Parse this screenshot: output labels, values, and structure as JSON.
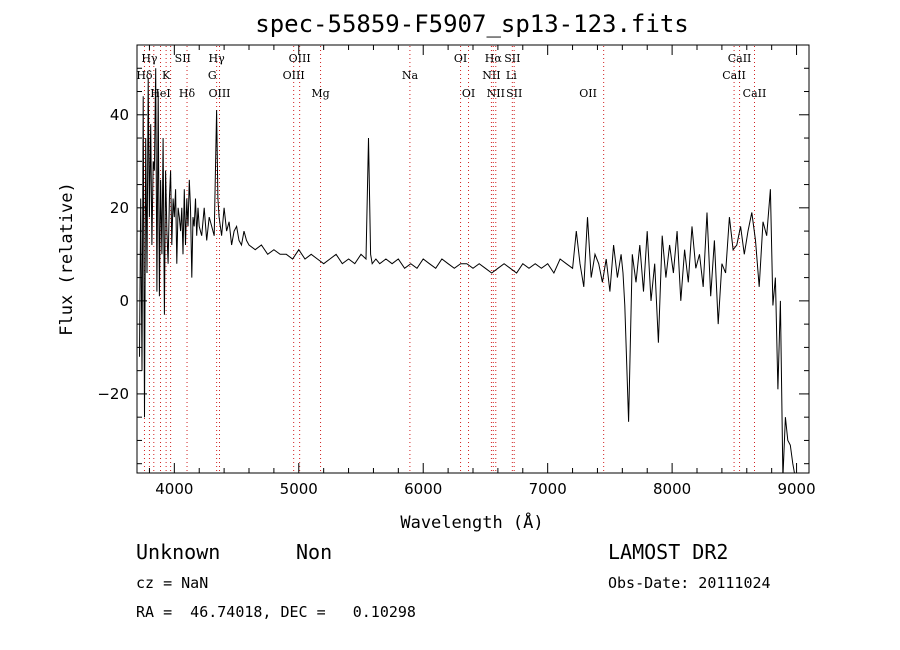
{
  "chart_data": {
    "type": "line",
    "title": "spec-55859-F5907_sp13-123.fits",
    "xlabel": "Wavelength (Å)",
    "ylabel": "Flux (relative)",
    "xlim": [
      3700,
      9100
    ],
    "ylim": [
      -37,
      55
    ],
    "x_ticks": [
      4000,
      5000,
      6000,
      7000,
      8000,
      9000
    ],
    "y_ticks": [
      -20,
      0,
      20,
      40
    ],
    "grid": false,
    "line_color": "#000000",
    "marker_color": "#d02020",
    "series": [
      {
        "x": [
          3720,
          3730,
          3740,
          3750,
          3760,
          3770,
          3780,
          3790,
          3800,
          3810,
          3820,
          3830,
          3840,
          3850,
          3860,
          3870,
          3880,
          3890,
          3900,
          3910,
          3920,
          3930,
          3940,
          3950,
          3960,
          3970,
          3980,
          3990,
          4000,
          4010,
          4020,
          4030,
          4040,
          4050,
          4060,
          4070,
          4080,
          4090,
          4100,
          4110,
          4120,
          4130,
          4140,
          4150,
          4160,
          4170,
          4180,
          4190,
          4200,
          4220,
          4240,
          4260,
          4280,
          4300,
          4320,
          4340,
          4350,
          4360,
          4380,
          4400,
          4420,
          4440,
          4460,
          4480,
          4500,
          4520,
          4540,
          4560,
          4580,
          4600,
          4650,
          4700,
          4750,
          4800,
          4850,
          4900,
          4950,
          5000,
          5050,
          5100,
          5150,
          5200,
          5250,
          5300,
          5350,
          5400,
          5450,
          5500,
          5540,
          5560,
          5577,
          5590,
          5620,
          5650,
          5700,
          5750,
          5800,
          5850,
          5900,
          5950,
          6000,
          6050,
          6100,
          6150,
          6200,
          6250,
          6300,
          6350,
          6400,
          6450,
          6500,
          6550,
          6600,
          6650,
          6700,
          6750,
          6800,
          6850,
          6900,
          6950,
          7000,
          7050,
          7100,
          7150,
          7200,
          7230,
          7260,
          7290,
          7320,
          7350,
          7380,
          7410,
          7440,
          7470,
          7500,
          7530,
          7560,
          7590,
          7605,
          7620,
          7650,
          7680,
          7710,
          7740,
          7770,
          7800,
          7830,
          7860,
          7890,
          7920,
          7950,
          7980,
          8010,
          8040,
          8070,
          8100,
          8130,
          8160,
          8190,
          8220,
          8250,
          8280,
          8310,
          8340,
          8370,
          8400,
          8430,
          8460,
          8490,
          8520,
          8550,
          8580,
          8610,
          8640,
          8670,
          8700,
          8730,
          8760,
          8790,
          8810,
          8830,
          8850,
          8870,
          8890,
          8910,
          8930,
          8950,
          8970,
          8990,
          9000
        ],
        "y": [
          -12,
          22,
          -15,
          44,
          -25,
          35,
          6,
          48,
          18,
          38,
          12,
          30,
          28,
          50,
          2,
          45,
          1,
          26,
          10,
          35,
          -3,
          28,
          15,
          8,
          22,
          28,
          12,
          22,
          18,
          24,
          8,
          20,
          18,
          15,
          20,
          10,
          24,
          12,
          22,
          16,
          26,
          20,
          5,
          18,
          16,
          22,
          14,
          20,
          16,
          14,
          20,
          13,
          18,
          16,
          14,
          41,
          22,
          18,
          14,
          20,
          15,
          17,
          12,
          15,
          16,
          13,
          12,
          15,
          13,
          12,
          11,
          12,
          10,
          11,
          10,
          10,
          9,
          11,
          9,
          10,
          9,
          8,
          9,
          10,
          8,
          9,
          8,
          10,
          9,
          35,
          10,
          8,
          9,
          8,
          9,
          8,
          9,
          7,
          8,
          7,
          9,
          8,
          7,
          9,
          8,
          7,
          8,
          8,
          7,
          8,
          7,
          6,
          7,
          8,
          7,
          6,
          8,
          7,
          8,
          7,
          8,
          6,
          9,
          8,
          7,
          15,
          8,
          3,
          18,
          5,
          10,
          8,
          4,
          9,
          2,
          12,
          5,
          10,
          6,
          -1,
          -26,
          10,
          4,
          12,
          2,
          15,
          0,
          8,
          -9,
          14,
          5,
          12,
          6,
          15,
          0,
          11,
          4,
          16,
          7,
          10,
          3,
          19,
          1,
          13,
          -5,
          8,
          6,
          18,
          11,
          12,
          16,
          10,
          15,
          19,
          13,
          3,
          17,
          14,
          24,
          -1,
          5,
          -19,
          0,
          -38,
          -25,
          -30,
          -31,
          -35,
          -38,
          -40
        ]
      }
    ],
    "line_markers": [
      {
        "label": "Hγ",
        "x": 3800,
        "row": 1
      },
      {
        "label": "Hδ",
        "x": 3760,
        "row": 2
      },
      {
        "label": "K",
        "x": 3934,
        "row": 2
      },
      {
        "label": "HeI",
        "x": 3889,
        "row": 3
      },
      {
        "label": "SII",
        "x": 4068,
        "row": 1
      },
      {
        "label": "Hδ",
        "x": 4102,
        "row": 3
      },
      {
        "label": "Hγ",
        "x": 4340,
        "row": 1
      },
      {
        "label": "G",
        "x": 4305,
        "row": 2
      },
      {
        "label": "OIII",
        "x": 4363,
        "row": 3
      },
      {
        "label": "OIII",
        "x": 5007,
        "row": 1
      },
      {
        "label": "OIII",
        "x": 4959,
        "row": 2
      },
      {
        "label": "Mg",
        "x": 5175,
        "row": 3
      },
      {
        "label": "Na",
        "x": 5893,
        "row": 2
      },
      {
        "label": "OI",
        "x": 6300,
        "row": 1
      },
      {
        "label": "OI",
        "x": 6364,
        "row": 3
      },
      {
        "label": "Hα",
        "x": 6563,
        "row": 1
      },
      {
        "label": "SII",
        "x": 6716,
        "row": 1
      },
      {
        "label": "NII",
        "x": 6548,
        "row": 2
      },
      {
        "label": "Li",
        "x": 6708,
        "row": 2
      },
      {
        "label": "NII",
        "x": 6583,
        "row": 3
      },
      {
        "label": "SII",
        "x": 6731,
        "row": 3
      },
      {
        "label": "OII",
        "x": 7325,
        "row": 3
      },
      {
        "label": "CaII",
        "x": 8542,
        "row": 1
      },
      {
        "label": "CaII",
        "x": 8498,
        "row": 2
      },
      {
        "label": "CaII",
        "x": 8662,
        "row": 3
      }
    ],
    "marker_lines_x": [
      3760,
      3800,
      3835,
      3889,
      3934,
      3970,
      4102,
      4340,
      4363,
      4959,
      5007,
      5175,
      5893,
      6300,
      6364,
      6548,
      6563,
      6583,
      6716,
      6731,
      7450,
      8498,
      8542,
      8662
    ]
  },
  "footer": {
    "class_label": "Unknown",
    "subclass_label": "Non",
    "survey": "LAMOST DR2",
    "cz": "cz = NaN",
    "obs_date": "Obs-Date: 20111024",
    "radec": "RA =  46.74018, DEC =   0.10298"
  }
}
